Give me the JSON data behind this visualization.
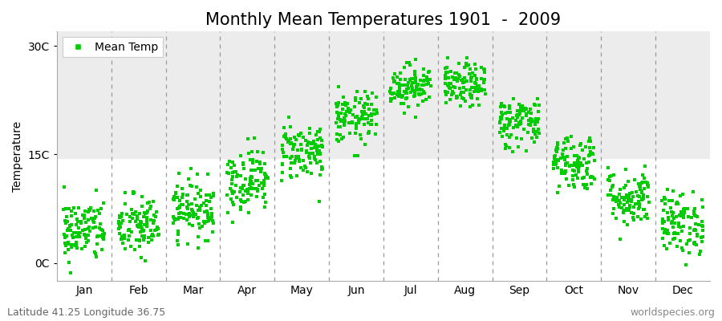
{
  "title": "Monthly Mean Temperatures 1901  -  2009",
  "ylabel": "Temperature",
  "y_tick_labels": [
    "0C",
    "15C",
    "30C"
  ],
  "y_tick_values": [
    0,
    15,
    30
  ],
  "ylim": [
    -2.5,
    32
  ],
  "xlim": [
    0,
    12
  ],
  "months": [
    "Jan",
    "Feb",
    "Mar",
    "Apr",
    "May",
    "Jun",
    "Jul",
    "Aug",
    "Sep",
    "Oct",
    "Nov",
    "Dec"
  ],
  "month_means": [
    4.5,
    5.0,
    7.5,
    11.5,
    15.5,
    20.0,
    24.5,
    24.5,
    19.5,
    14.0,
    9.0,
    5.5
  ],
  "month_stds": [
    2.2,
    2.2,
    2.0,
    2.2,
    2.0,
    1.8,
    1.5,
    1.5,
    1.8,
    2.0,
    2.0,
    2.2
  ],
  "dot_color": "#00CC00",
  "dot_size": 6,
  "legend_label": "Mean Temp",
  "dashed_line_color": "#999999",
  "plot_bg_color": "#FFFFFF",
  "fig_bg_color": "#FFFFFF",
  "gray_band_ymin": 14.5,
  "gray_band_ymax": 32,
  "gray_band_color": "#ECECEC",
  "n_years": 109,
  "bottom_left_text": "Latitude 41.25 Longitude 36.75",
  "bottom_right_text": "worldspecies.org",
  "title_fontsize": 15,
  "axis_label_fontsize": 10,
  "tick_label_fontsize": 10,
  "annotation_fontsize": 9,
  "seed": 42
}
